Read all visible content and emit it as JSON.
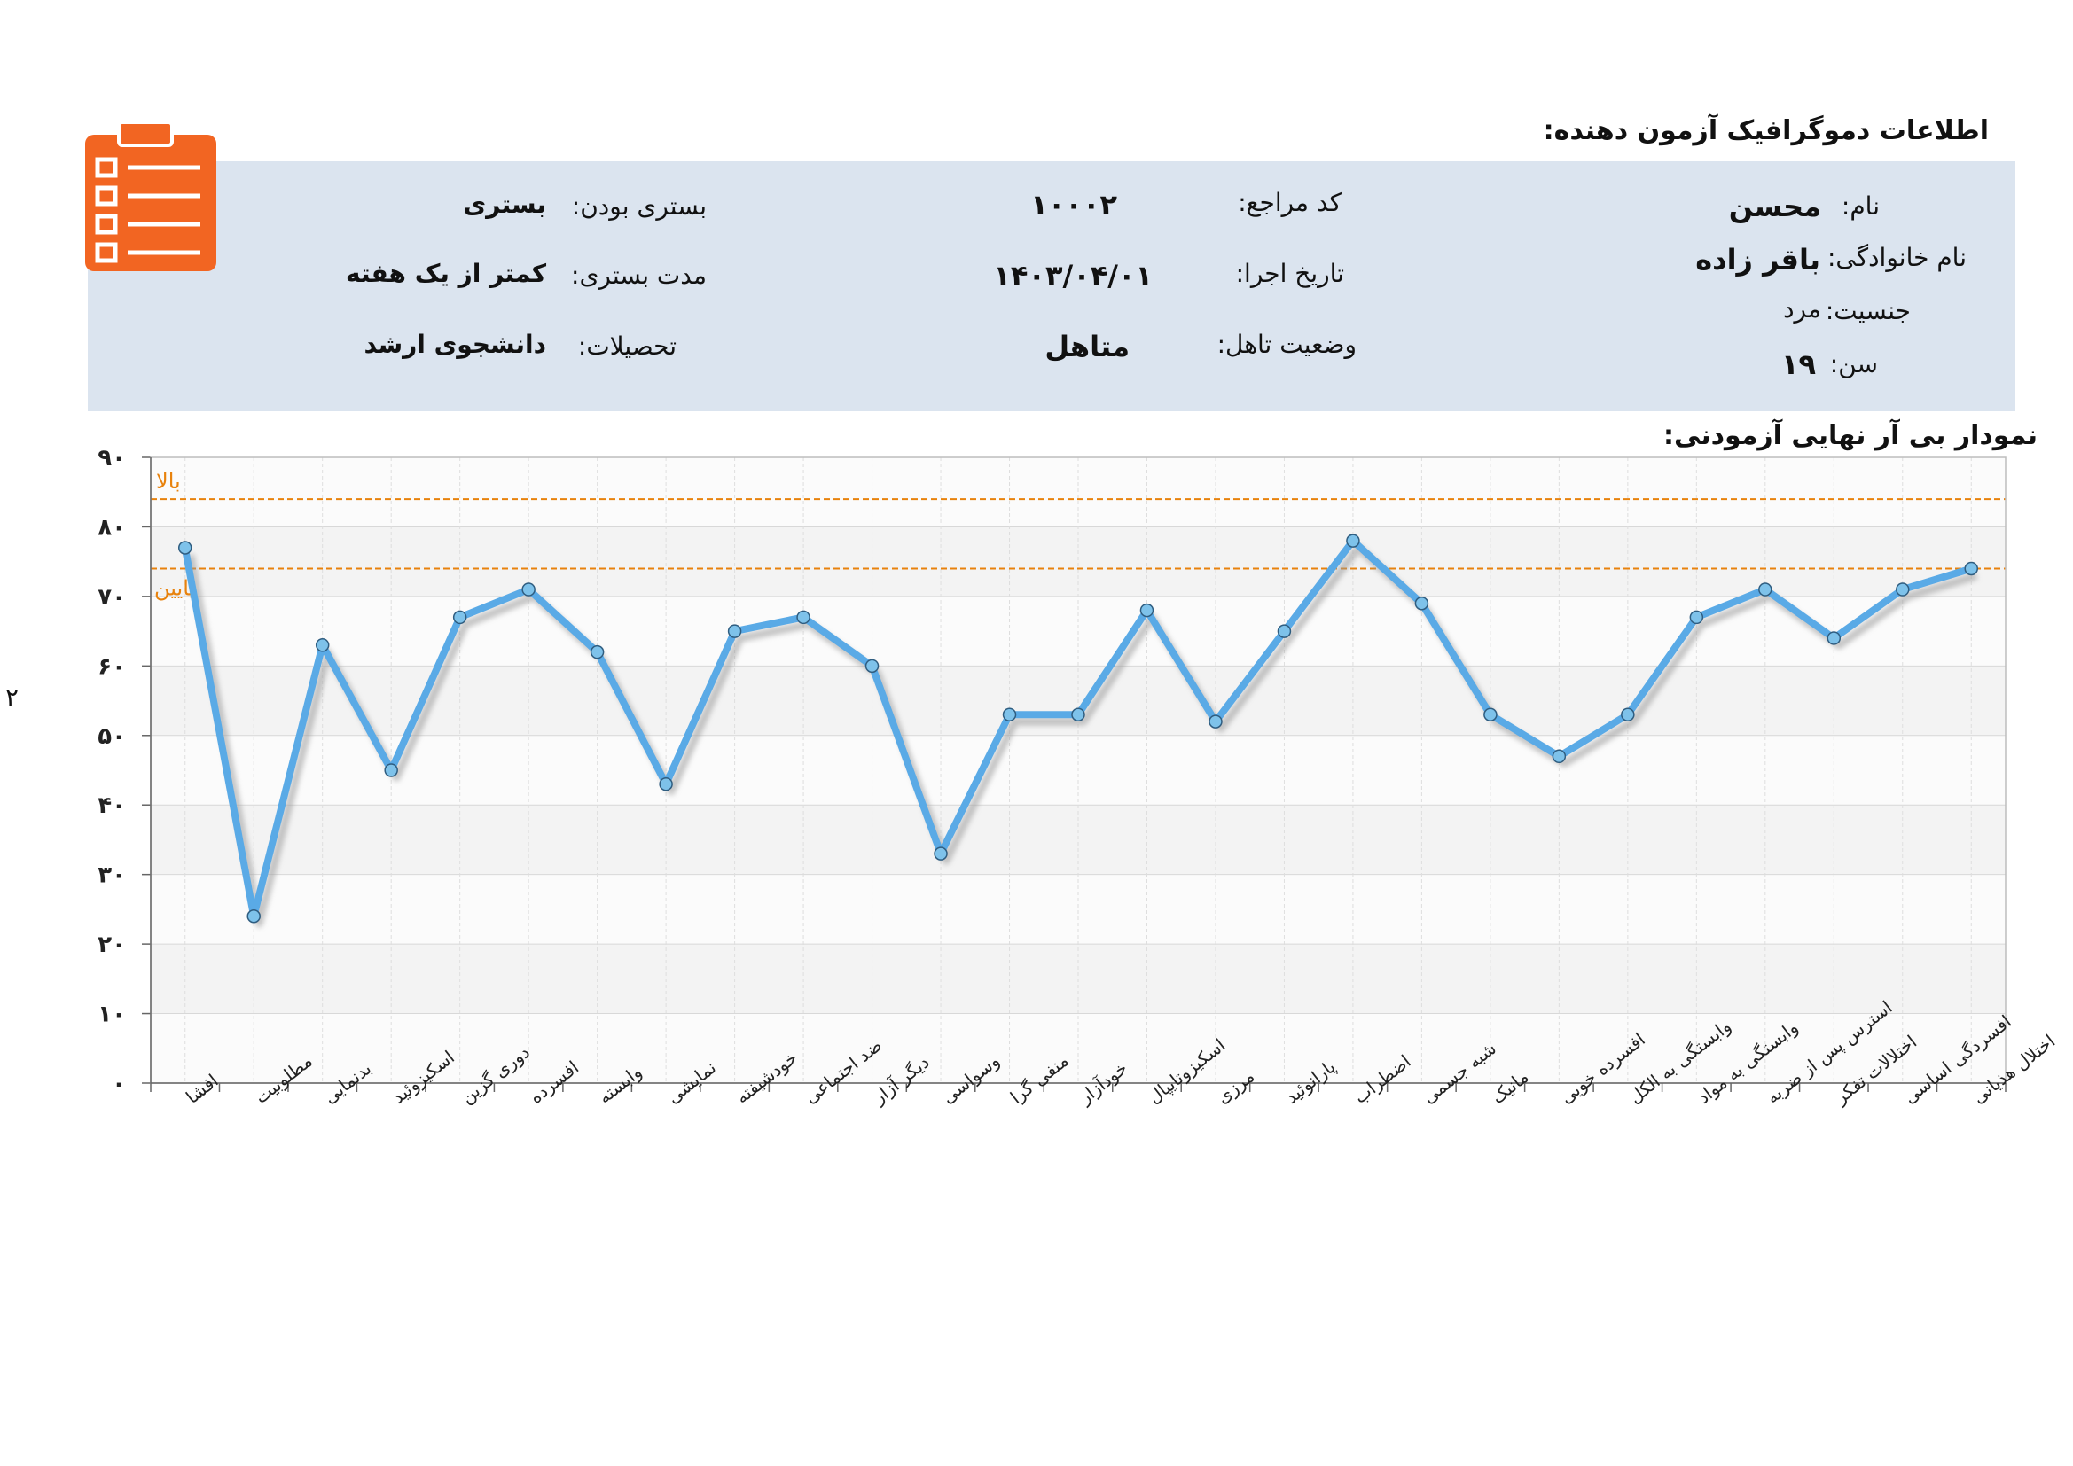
{
  "header": {
    "title": "اطلاعات دموگرافیک آزمون دهنده:"
  },
  "page_number": "۲",
  "info": {
    "name_label": "نام:",
    "name_value": "محسن",
    "family_label": "نام خانوادگی:",
    "family_value": "باقر زاده",
    "gender_label": "جنسیت:",
    "gender_value": "مرد",
    "age_label": "سن:",
    "age_value": "۱۹",
    "code_label": "کد مراجع:",
    "code_value": "۱۰۰۰۲",
    "date_label": "تاریخ اجرا:",
    "date_value": "۱۴۰۳/۰۴/۰۱",
    "marital_label": "وضعیت تاهل:",
    "marital_value": "متاهل",
    "inpatient_label": "بستری بودن:",
    "inpatient_value": "بستری",
    "duration_label": "مدت بستری:",
    "duration_value": "کمتر از یک هفته",
    "education_label": "تحصیلات:",
    "education_value": "دانشجوی ارشد"
  },
  "icons": {
    "clipboard": "clipboard-list-icon",
    "clipboard_color": "#f26522"
  },
  "chart_data": {
    "type": "line",
    "title": "نمودار بی آر نهایی آزمودنی:",
    "categories": [
      "افشا",
      "مطلوبیت",
      "بدنمایی",
      "اسکیزوئید",
      "دوری گزین",
      "افسرده",
      "وابسته",
      "نمایشی",
      "خودشیفته",
      "ضد اجتماعی",
      "دیگر آزار",
      "وسواسی",
      "منفی گرا",
      "خودآزار",
      "اسکیزوتایپال",
      "مرزی",
      "پارانوئید",
      "اضطراب",
      "شبه جسمی",
      "مانیک",
      "افسرده خویی",
      "وابستگی به الکل",
      "وابستگی به مواد",
      "استرس پس از ضربه",
      "اختلالات تفکر",
      "افسردگی اساسی",
      "اختلال هذیانی"
    ],
    "values": [
      77,
      24,
      63,
      45,
      67,
      71,
      62,
      43,
      65,
      67,
      60,
      33,
      53,
      53,
      68,
      52,
      65,
      78,
      69,
      53,
      47,
      53,
      67,
      71,
      64,
      71,
      74
    ],
    "y_tick_labels": [
      "۰",
      "۱۰",
      "۲۰",
      "۳۰",
      "۴۰",
      "۵۰",
      "۶۰",
      "۷۰",
      "۸۰",
      "۹۰"
    ],
    "ylim": [
      0,
      90
    ],
    "reference_lines": [
      {
        "label": "بالا",
        "value": 84
      },
      {
        "label": "پایین",
        "value": 74
      }
    ],
    "grid": true,
    "line_color": "#5aaae6",
    "marker_color": "#7ec2ea",
    "reference_color": "#e8820c"
  }
}
